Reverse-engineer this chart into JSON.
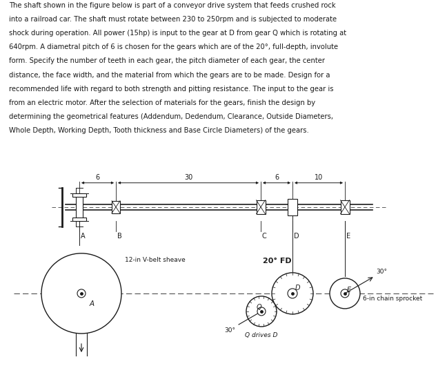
{
  "bg_color": "#ffffff",
  "text_color": "#1a1a1a",
  "paragraph": "The shaft shown in the figure below is part of a conveyor drive system that feeds crushed rock\ninto a railroad car. The shaft must rotate between 230 to 250rpm and is subjected to moderate\nshock during operation. All power (15hp) is input to the gear at D from gear Q which is rotating at\n640rpm. A diametral pitch of 6 is chosen for the gears which are of the 20°, full-depth, involute\nform. Specify the number of teeth in each gear, the pitch diameter of each gear, the center\ndistance, the face width, and the material from which the gears are to be made. Design for a\nrecommended life with regard to both strength and pitting resistance. The input to the gear is\nfrom an electric motor. After the selection of materials for the gears, finish the design by\ndetermining the geometrical features (Addendum, Dedendum, Clearance, Outside Diameters,\nWhole Depth, Working Depth, Tooth thickness and Base Circle Diameters) of the gears.",
  "dim_6_left": "6",
  "dim_30": "30",
  "dim_6_right": "6",
  "dim_10": "10",
  "label_A": "A",
  "label_B": "B",
  "label_C": "C",
  "label_D": "D",
  "label_E": "E",
  "label_Q": "Q",
  "label_belt": "12-in V-belt sheave",
  "label_gear_fd": "20° FD",
  "label_sprocket": "6-in chain sprocket",
  "label_Q_drives": "Q drives D",
  "angle_30": "30°"
}
